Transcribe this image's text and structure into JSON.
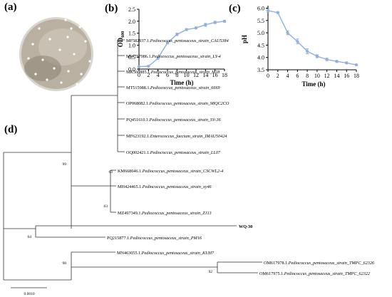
{
  "panels": {
    "a": "(a)",
    "b": "(b)",
    "c": "(c)",
    "d": "(d)"
  },
  "colors": {
    "series": "#8fb0e0",
    "tree": "#333333",
    "plate_rim": "#8f8f8f",
    "plate_fill": "#b9b0a2"
  },
  "chart_data": [
    {
      "type": "line",
      "panel": "b",
      "xlabel": "Time (h)",
      "ylabel": "OD600",
      "x": [
        0,
        2,
        4,
        6,
        8,
        10,
        12,
        14,
        16,
        18
      ],
      "xticks": [
        "0",
        "2",
        "4",
        "6",
        "8",
        "10",
        "12",
        "14",
        "16",
        "18"
      ],
      "yticks": [
        "0.0",
        "0.5",
        "1.0",
        "1.5",
        "2.0",
        "2.5"
      ],
      "xlim": [
        0,
        18
      ],
      "ylim": [
        0,
        2.5
      ],
      "values": [
        0.1,
        0.12,
        0.45,
        1.1,
        1.45,
        1.65,
        1.72,
        1.85,
        1.95,
        2.0
      ],
      "errors": [
        0.02,
        0.02,
        0.03,
        0.05,
        0.05,
        0.04,
        0.04,
        0.06,
        0.05,
        0.04
      ]
    },
    {
      "type": "line",
      "panel": "c",
      "xlabel": "Time (h)",
      "ylabel": "pH",
      "x": [
        0,
        2,
        4,
        6,
        8,
        10,
        12,
        14,
        16,
        18
      ],
      "xticks": [
        "0",
        "2",
        "4",
        "6",
        "8",
        "10",
        "12",
        "14",
        "16",
        "18"
      ],
      "yticks": [
        "3.5",
        "4.0",
        "4.5",
        "5.0",
        "5.5",
        "6.0"
      ],
      "xlim": [
        0,
        18
      ],
      "ylim": [
        3.5,
        6.1
      ],
      "values": [
        5.9,
        5.82,
        5.0,
        4.65,
        4.25,
        4.05,
        3.92,
        3.84,
        3.78,
        3.7
      ],
      "errors": [
        0.07,
        0.04,
        0.08,
        0.1,
        0.1,
        0.06,
        0.05,
        0.04,
        0.04,
        0.03
      ]
    },
    {
      "type": "tree",
      "panel": "d",
      "leaves": [
        {
          "acc": "MF582937.1",
          "name": "Pediococcus_pentosaceus_strain_CAU5384"
        },
        {
          "acc": "MW757986.1",
          "name": "Pediococcus_pentosaceus_strain_LY-4"
        },
        {
          "acc": "MK560885.1",
          "name": "Pediococcus_pentosaceus_strain_M28"
        },
        {
          "acc": "MT515988.1",
          "name": "Pediococcus_pentosaceus_strain_6669"
        },
        {
          "acc": "OP068082.1",
          "name": "Pediococcus_pentosaceus_strain_98QC2CO"
        },
        {
          "acc": "PQ451610.1",
          "name": "Pediococcus_pentosaceus_strain_SV-36"
        },
        {
          "acc": "MF623192.1",
          "name": "Enterococcus_faecium_strain_IMAU50424"
        },
        {
          "acc": "OQ002421.1",
          "name": "Pediococcus_pentosaceus_strain_LL07"
        },
        {
          "acc": "KM668046.1",
          "name": "Pediococcus_pentosaceus_strain_CSCWL2-4"
        },
        {
          "acc": "MH424465.1",
          "name": "Pediococcus_pentosaceus_strain_xy46"
        },
        {
          "acc": "MZ497349.1",
          "name": "Pediococcus_pentosaceus_strain_ZJ13"
        },
        {
          "acc": "",
          "name": "WQ-30",
          "bold": true
        },
        {
          "acc": "PQ215877.1",
          "name": "Pediococcus_pentosaceus_strain_PM16"
        },
        {
          "acc": "MN463055.1",
          "name": "Pediococcus_pentosaceus_strain_KUH7"
        },
        {
          "acc": "OM617978.1",
          "name": "Pediococcus_pentosaceus_strain_TMPC_62326"
        },
        {
          "acc": "OM617975.1",
          "name": "Pediococcus_pentosaceus_strain_TMPC_62322"
        }
      ],
      "bootstrap": [
        "63",
        "99",
        "63",
        "64",
        "98",
        "92"
      ],
      "scale_label": "0.0010"
    }
  ]
}
